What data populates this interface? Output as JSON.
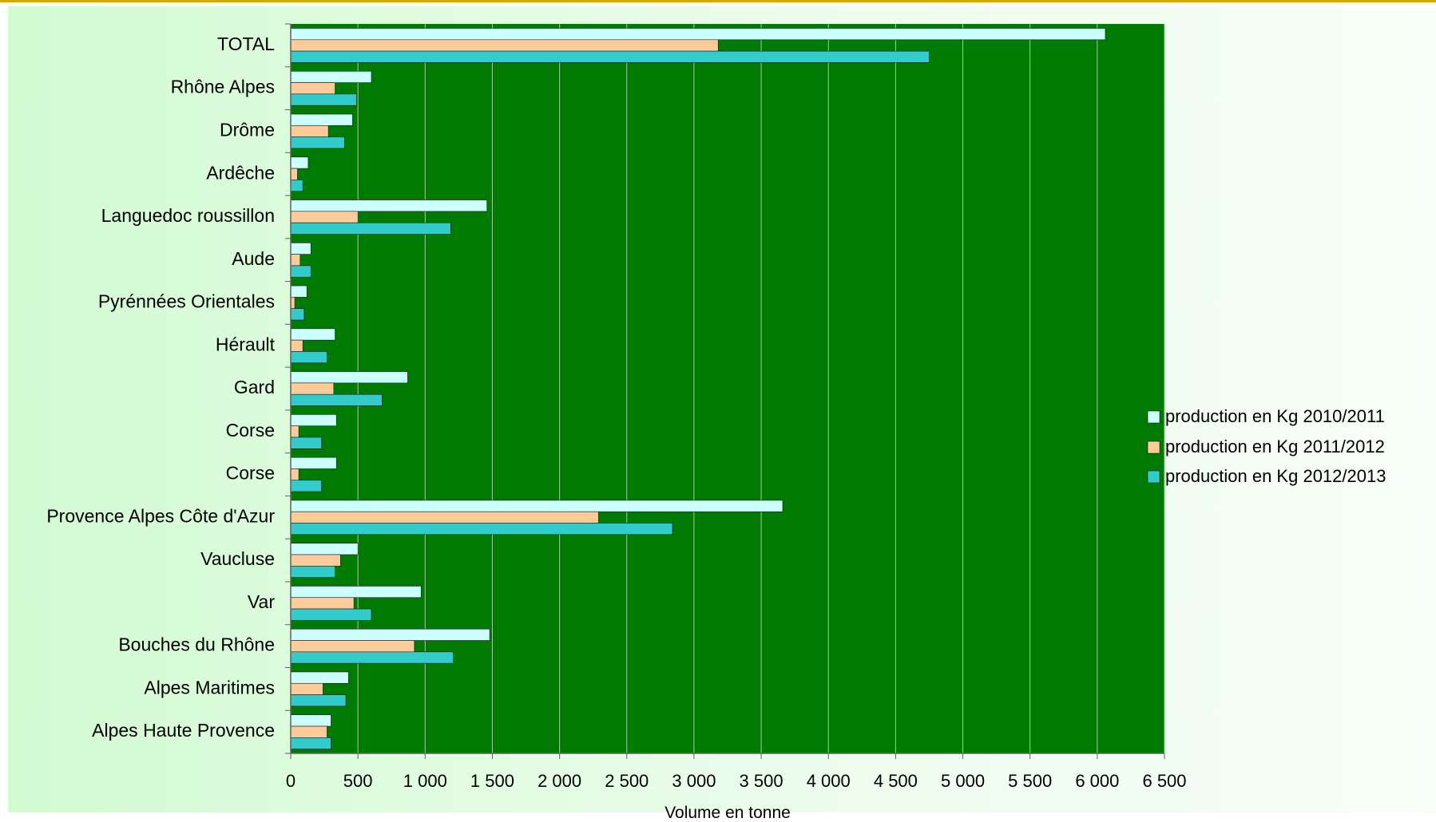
{
  "chart_data": {
    "type": "bar",
    "orientation": "horizontal",
    "categories": [
      "TOTAL",
      "Rhône Alpes",
      "Drôme",
      "Ardêche",
      "Languedoc roussillon",
      "Aude",
      "Pyrénnées Orientales",
      "Hérault",
      "Gard",
      "Corse ",
      "Corse",
      "Provence Alpes Côte d'Azur",
      "Vaucluse",
      "Var",
      "Bouches du Rhône",
      "Alpes Maritimes",
      "Alpes Haute Provence"
    ],
    "series": [
      {
        "name": "production en Kg 2010/2011",
        "color": "#ccffff",
        "values": [
          6060,
          600,
          460,
          130,
          1460,
          150,
          120,
          330,
          870,
          340,
          340,
          3660,
          500,
          970,
          1480,
          430,
          300
        ]
      },
      {
        "name": "production en Kg 2011/2012",
        "color": "#ffcc99",
        "values": [
          3180,
          330,
          280,
          50,
          500,
          70,
          30,
          90,
          320,
          60,
          60,
          2290,
          370,
          470,
          920,
          240,
          270
        ]
      },
      {
        "name": "production en Kg 2012/2013",
        "color": "#33cccc",
        "values": [
          4750,
          490,
          400,
          90,
          1190,
          150,
          100,
          270,
          680,
          230,
          230,
          2840,
          330,
          600,
          1210,
          410,
          300
        ]
      }
    ],
    "xlabel": "Volume en tonne",
    "ylabel": "",
    "xlim": [
      0,
      6500
    ],
    "x_ticks": [
      0,
      500,
      1000,
      1500,
      2000,
      2500,
      3000,
      3500,
      4000,
      4500,
      5000,
      5500,
      6000,
      6500
    ],
    "x_tick_labels": [
      "0",
      "500",
      "1 000",
      "1 500",
      "2 000",
      "2 500",
      "3 000",
      "3 500",
      "4 000",
      "4 500",
      "5 000",
      "5 500",
      "6 000",
      "6 500"
    ],
    "grid": true,
    "plot_background": "#007a00",
    "gridline_color": "#9fcf9f",
    "legend_position": "right"
  }
}
